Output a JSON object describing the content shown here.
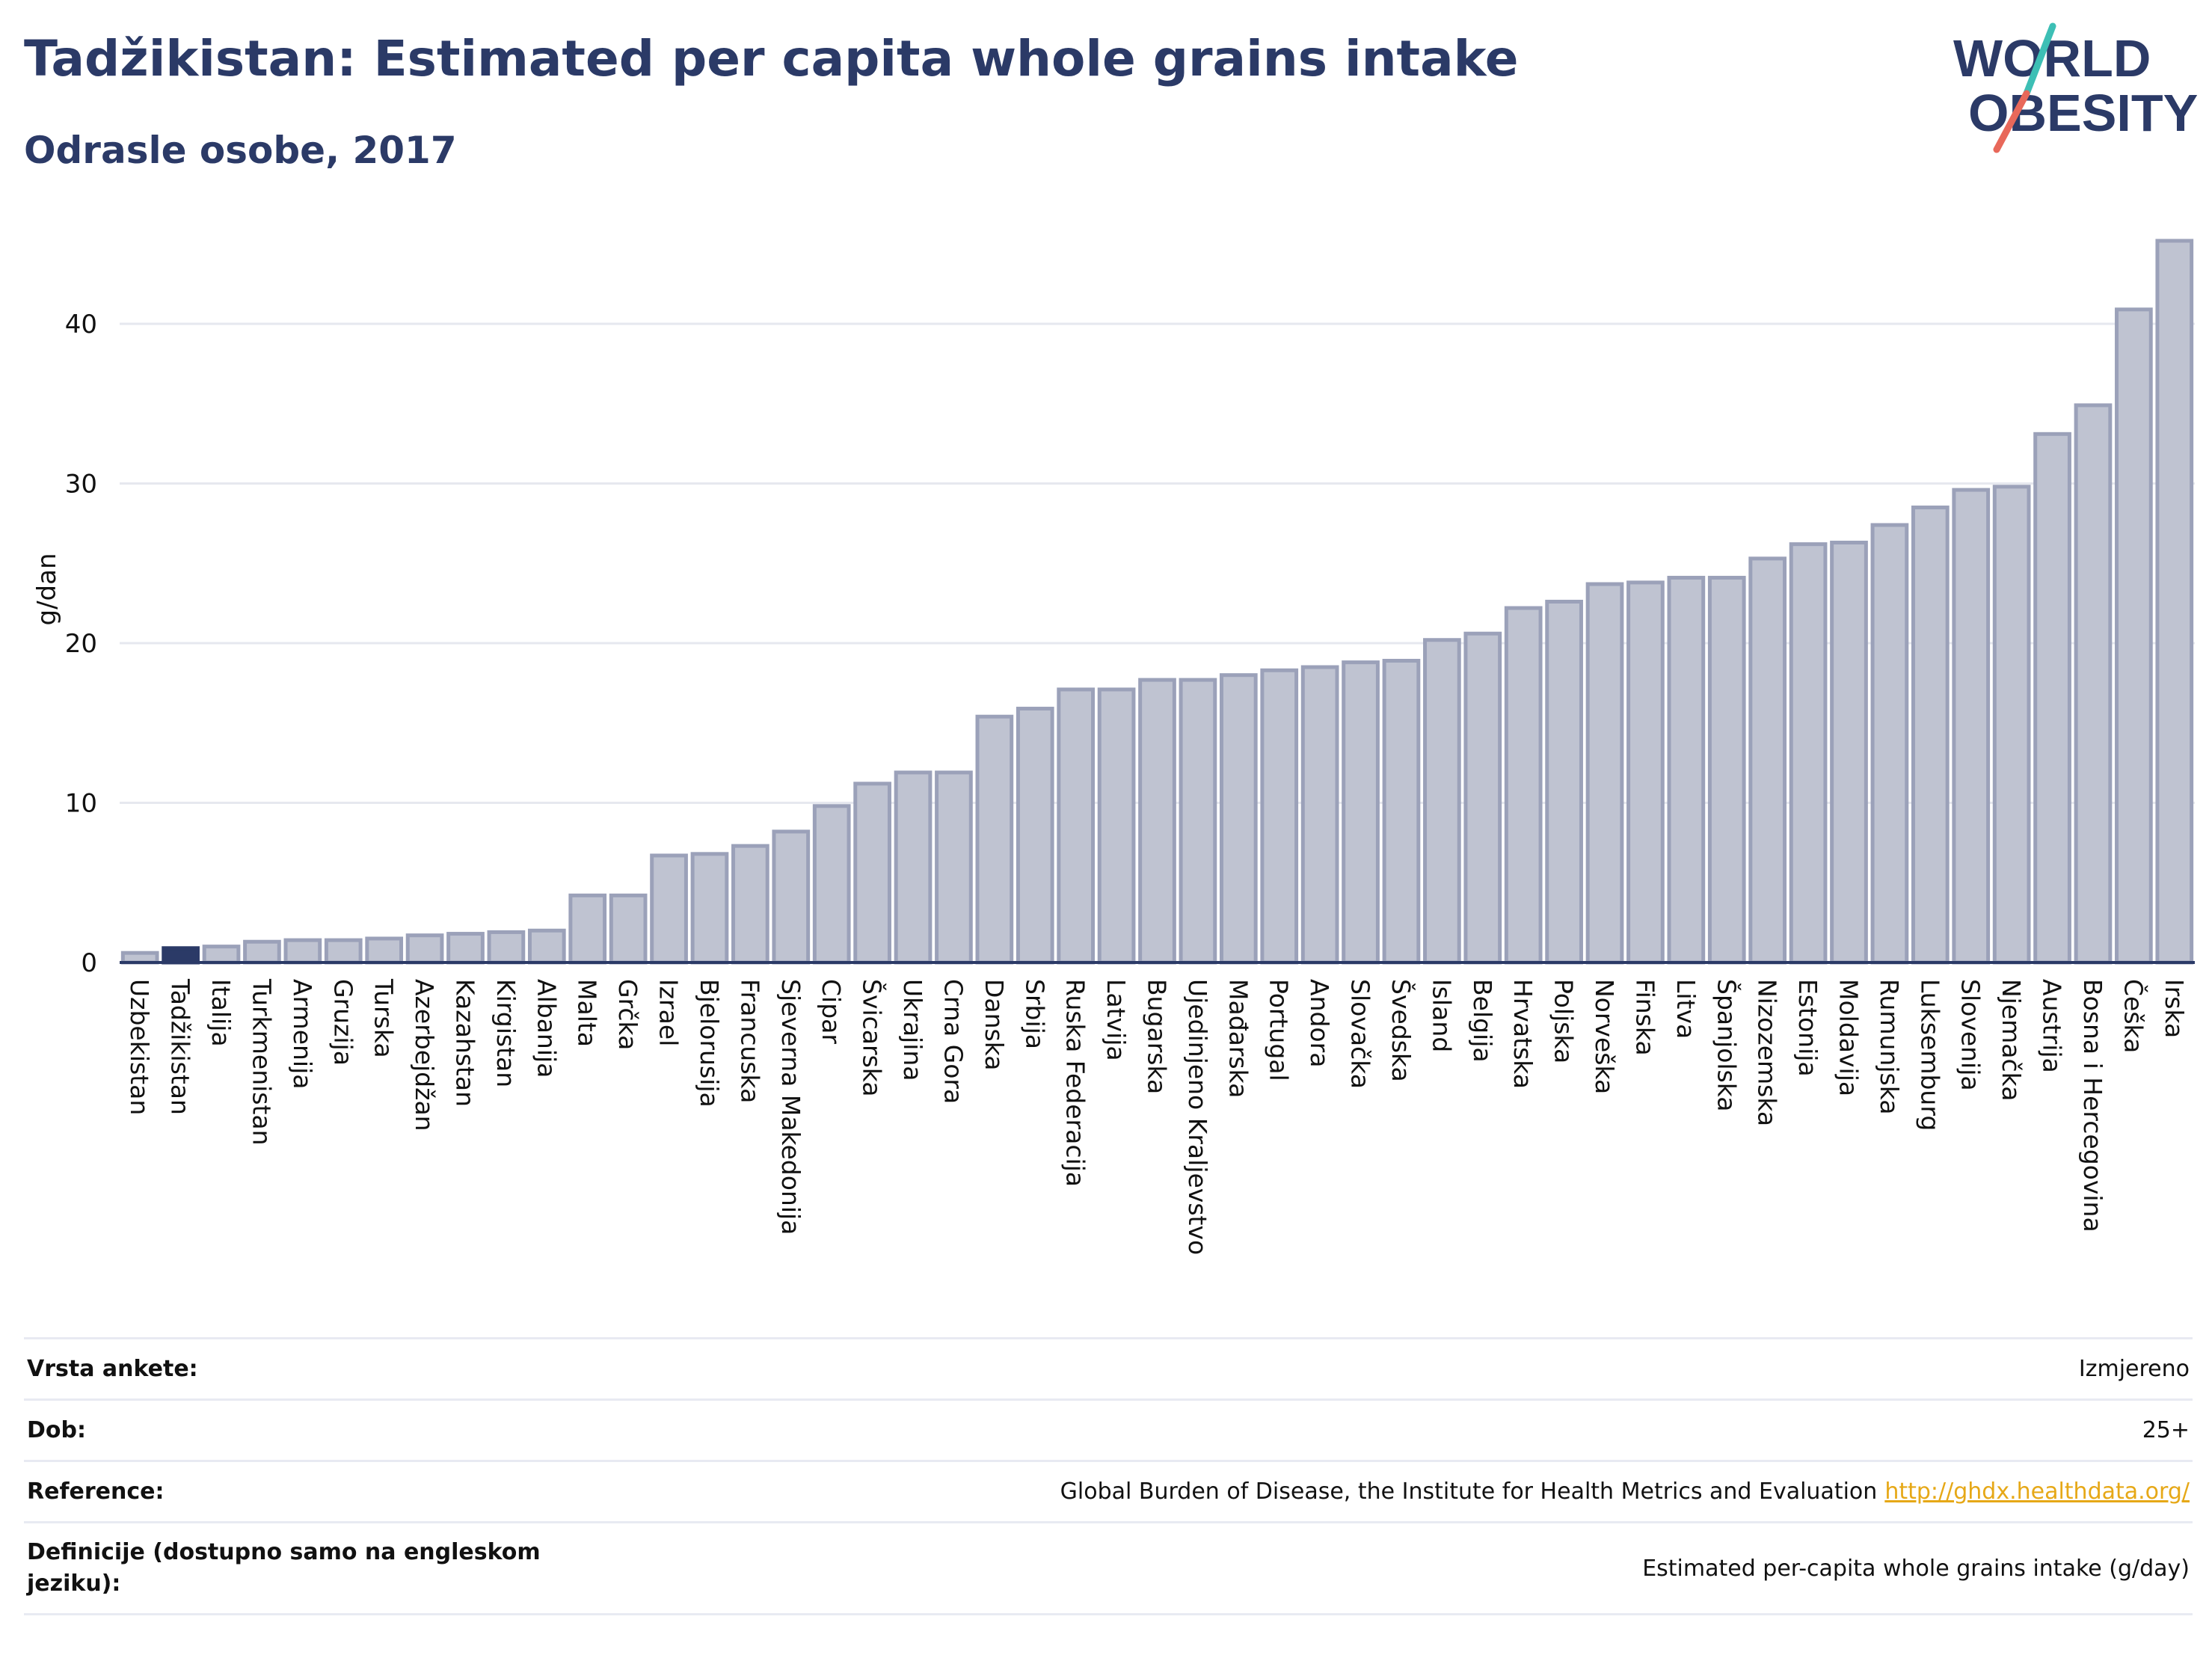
{
  "header": {
    "title": "Tadžikistan: Estimated per capita whole grains intake",
    "subtitle": "Odrasle osobe, 2017"
  },
  "logo": {
    "line1": "WORLD",
    "line2": "OBESITY"
  },
  "colors": {
    "title": "#2b3a67",
    "bar_fill": "#bfc3d1",
    "bar_stroke": "#9ba1b9",
    "highlight_fill": "#2b3a67",
    "axis": "#2b3a67",
    "grid": "#e6e8ef",
    "link": "#e6a817",
    "logo_teal": "#3dbfb5",
    "logo_coral": "#e8685a"
  },
  "chart_data": {
    "type": "bar",
    "ylabel": "g/dan",
    "xlabel": "",
    "ylim": [
      0,
      46
    ],
    "yticks": [
      0,
      10,
      20,
      30,
      40
    ],
    "grid": true,
    "highlight": "Tadžikistan",
    "categories": [
      "Uzbekistan",
      "Tadžikistan",
      "Italija",
      "Turkmenistan",
      "Armenija",
      "Gruzija",
      "Turska",
      "Azerbejdžan",
      "Kazahstan",
      "Kirgistan",
      "Albanija",
      "Malta",
      "Grčka",
      "Izrael",
      "Bjelorusija",
      "Francuska",
      "Sjeverna Makedonija",
      "Cipar",
      "Švicarska",
      "Ukrajina",
      "Crna Gora",
      "Danska",
      "Srbija",
      "Ruska Federacija",
      "Latvija",
      "Bugarska",
      "Ujedinjeno Kraljevstvo",
      "Mađarska",
      "Portugal",
      "Andora",
      "Slovačka",
      "Švedska",
      "Island",
      "Belgija",
      "Hrvatska",
      "Poljska",
      "Norveška",
      "Finska",
      "Litva",
      "Španjolska",
      "Nizozemska",
      "Estonija",
      "Moldavija",
      "Rumunjska",
      "Luksemburg",
      "Slovenija",
      "Njemačka",
      "Austrija",
      "Bosna i Hercegovina",
      "Češka",
      "Irska"
    ],
    "values": [
      0.6,
      0.9,
      1.0,
      1.3,
      1.4,
      1.4,
      1.5,
      1.7,
      1.8,
      1.9,
      2.0,
      4.2,
      4.2,
      6.7,
      6.8,
      7.3,
      8.2,
      9.8,
      11.2,
      11.9,
      11.9,
      15.4,
      15.9,
      17.1,
      17.1,
      17.7,
      17.7,
      18.0,
      18.3,
      18.5,
      18.8,
      18.9,
      20.2,
      20.6,
      22.2,
      22.6,
      23.7,
      23.8,
      24.1,
      24.1,
      25.3,
      26.2,
      26.3,
      27.4,
      28.5,
      29.6,
      29.8,
      33.1,
      34.9,
      40.9,
      45.2
    ]
  },
  "info": {
    "rows": [
      {
        "label": "Vrsta ankete:",
        "value": "Izmjereno"
      },
      {
        "label": "Dob:",
        "value": "25+"
      },
      {
        "label": "Reference:",
        "value": "Global Burden of Disease, the Institute for Health Metrics and Evaluation",
        "link": "http://ghdx.healthdata.org/"
      },
      {
        "label": "Definicije (dostupno samo na engleskom jeziku):",
        "value": "Estimated per-capita whole grains intake (g/day)"
      }
    ]
  }
}
